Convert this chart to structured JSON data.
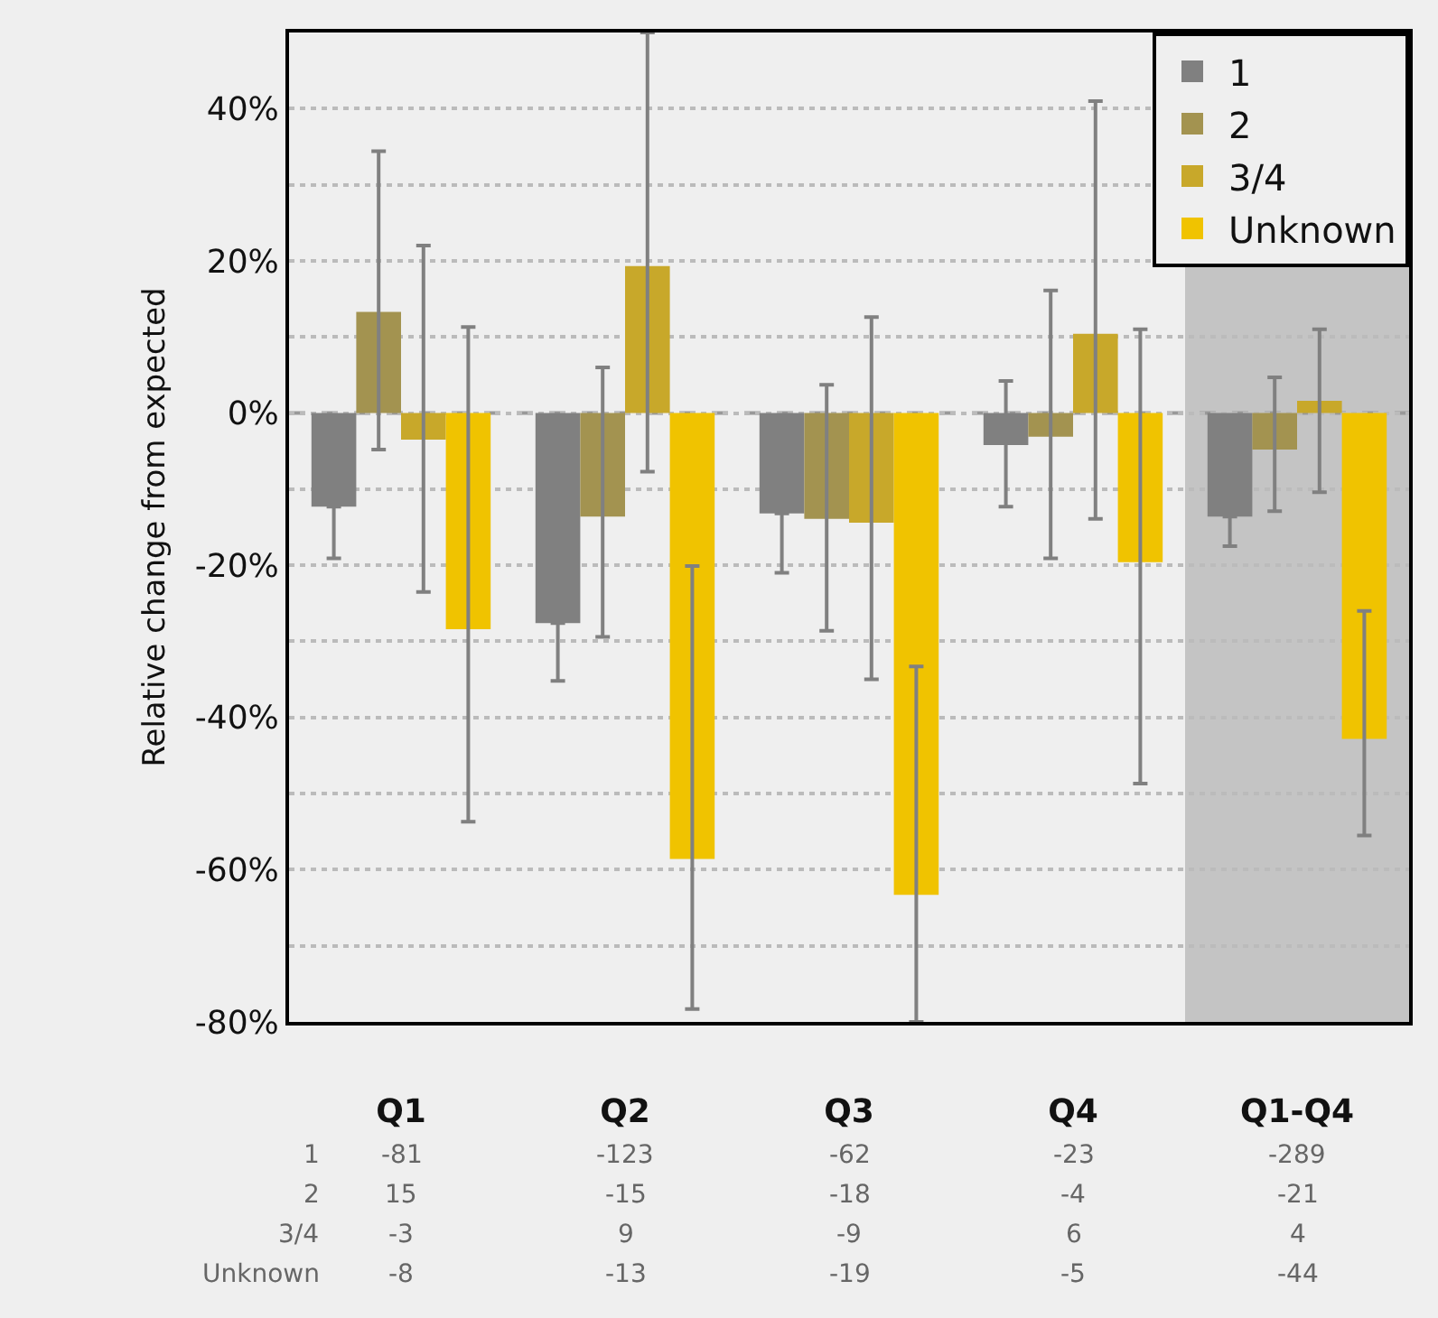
{
  "chart_data": {
    "type": "bar",
    "ylabel": "Relative change from expected",
    "categories": [
      "Q1",
      "Q2",
      "Q3",
      "Q4",
      "Q1-Q4"
    ],
    "series": [
      {
        "name": "1",
        "color": "#808080",
        "values": [
          -12.3,
          -27.6,
          -13.2,
          -4.2,
          -13.6
        ],
        "errors": [
          [
            -19.1,
            -12.3
          ],
          [
            -35.2,
            -27.6
          ],
          [
            -21,
            -13.2
          ],
          [
            -12.3,
            4.2
          ],
          [
            -17.5,
            -13.6
          ]
        ]
      },
      {
        "name": "2",
        "color": "#a39350",
        "values": [
          13.3,
          -13.6,
          -13.9,
          -3.1,
          -4.8
        ],
        "errors": [
          [
            -4.8,
            34.4
          ],
          [
            -29.4,
            6
          ],
          [
            -28.6,
            3.7
          ],
          [
            -19.1,
            16.1
          ],
          [
            -12.9,
            4.7
          ]
        ]
      },
      {
        "name": "3/4",
        "color": "#c8a82a",
        "values": [
          -3.5,
          19.3,
          -14.4,
          10.4,
          1.6
        ],
        "errors": [
          [
            -23.5,
            22
          ],
          [
            -7.7,
            50
          ],
          [
            -35,
            12.6
          ],
          [
            -13.9,
            41
          ],
          [
            -10.4,
            11
          ]
        ]
      },
      {
        "name": "Unknown",
        "color": "#f0c300",
        "values": [
          -28.4,
          -58.6,
          -63.3,
          -19.6,
          -42.8
        ],
        "errors": [
          [
            -53.7,
            11.3
          ],
          [
            -78.3,
            -20.1
          ],
          [
            -80,
            -33.3
          ],
          [
            -48.7,
            11
          ],
          [
            -55.5,
            -26
          ]
        ]
      }
    ],
    "ylim": [
      -80,
      50
    ],
    "yticks": [
      {
        "value": -80,
        "label": "-80%"
      },
      {
        "value": -70,
        "label": null
      },
      {
        "value": -60,
        "label": "-60%"
      },
      {
        "value": -50,
        "label": null
      },
      {
        "value": -40,
        "label": "-40%"
      },
      {
        "value": -30,
        "label": null
      },
      {
        "value": -20,
        "label": "-20%"
      },
      {
        "value": -10,
        "label": null
      },
      {
        "value": 0,
        "label": "0%"
      },
      {
        "value": 10,
        "label": null
      },
      {
        "value": 20,
        "label": "20%"
      },
      {
        "value": 30,
        "label": null
      },
      {
        "value": 40,
        "label": "40%"
      }
    ],
    "grid": "y",
    "legend": "top right",
    "ref_lines": [
      {
        "axis": "y",
        "value": 0,
        "line_style": "dashed",
        "color": "#999999"
      }
    ],
    "bands": [
      {
        "axis": "x",
        "from": "Q1-Q4",
        "to": "Q1-Q4",
        "color": "#c4c4c4"
      }
    ],
    "annotations": [
      "1",
      "-81",
      "-123",
      "-62",
      "-23",
      "-289",
      "2",
      "15",
      "-15",
      "-18",
      "-4",
      "-21",
      "3/4",
      "-3",
      "9",
      "-9",
      "6",
      "4",
      "Unknown",
      "-8",
      "-13",
      "-19",
      "-5",
      "-44"
    ]
  }
}
